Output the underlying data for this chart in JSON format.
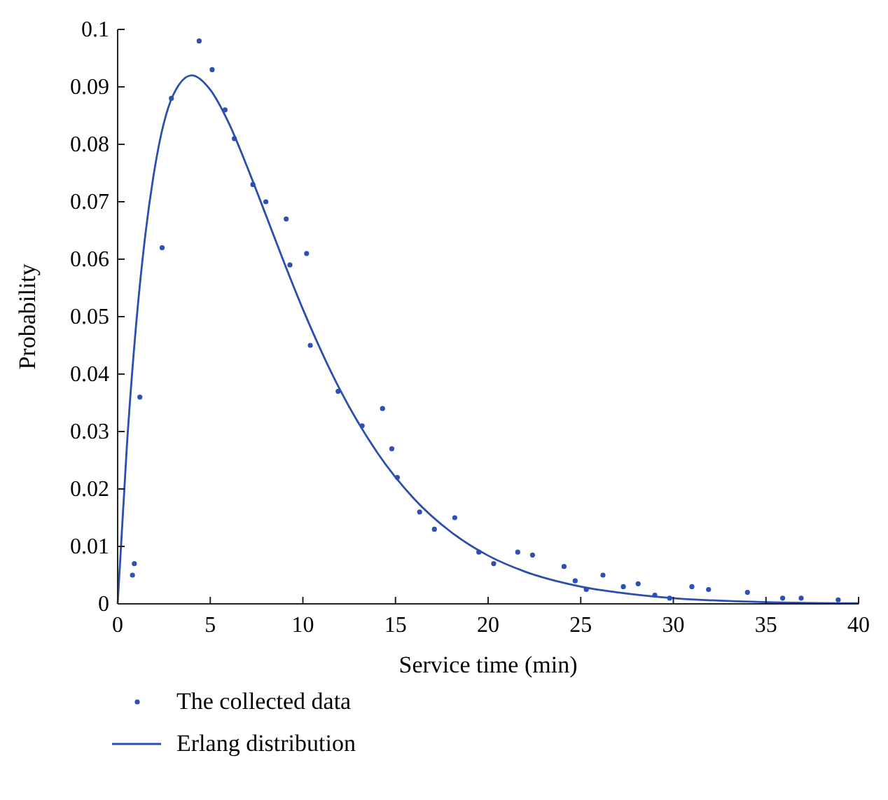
{
  "chart_data": {
    "type": "scatter",
    "xlabel": "Service time (min)",
    "ylabel": "Probability",
    "xlim": [
      0,
      40
    ],
    "ylim": [
      0,
      0.1
    ],
    "xticks": [
      0,
      5,
      10,
      15,
      20,
      25,
      30,
      35,
      40
    ],
    "yticks": [
      0,
      0.01,
      0.02,
      0.03,
      0.04,
      0.05,
      0.06,
      0.07,
      0.08,
      0.09,
      0.1
    ],
    "grid": false,
    "legend": "bottom",
    "series": [
      {
        "name": "The collected data",
        "marker": "circle",
        "color": "#3050b0",
        "x": [
          0.8,
          0.9,
          1.2,
          2.4,
          2.9,
          4.4,
          5.1,
          5.8,
          6.3,
          7.3,
          8.0,
          9.1,
          9.3,
          10.2,
          10.4,
          11.9,
          13.2,
          14.3,
          14.8,
          15.1,
          16.3,
          17.1,
          18.2,
          19.5,
          20.3,
          21.6,
          22.4,
          24.1,
          24.7,
          25.3,
          26.2,
          27.3,
          28.1,
          29.0,
          29.8,
          31.0,
          31.9,
          34.0,
          35.9,
          36.9,
          38.9
        ],
        "values": [
          0.005,
          0.007,
          0.036,
          0.062,
          0.088,
          0.098,
          0.093,
          0.086,
          0.081,
          0.073,
          0.07,
          0.067,
          0.059,
          0.061,
          0.045,
          0.037,
          0.031,
          0.034,
          0.027,
          0.022,
          0.016,
          0.013,
          0.015,
          0.009,
          0.007,
          0.009,
          0.0085,
          0.0065,
          0.004,
          0.0025,
          0.005,
          0.003,
          0.0035,
          0.0015,
          0.001,
          0.003,
          0.0025,
          0.002,
          0.001,
          0.001,
          0.0007
        ]
      },
      {
        "name": "Erlang distribution",
        "type": "line",
        "line_style": "solid",
        "color": "#2a4fb0",
        "x": [
          0,
          0.5,
          1,
          1.5,
          2,
          3,
          4,
          5,
          6,
          7,
          8,
          9,
          10,
          12,
          14,
          16,
          18,
          20,
          22,
          25,
          28,
          30,
          35,
          40
        ],
        "values": [
          0,
          0.0276,
          0.0487,
          0.0644,
          0.0758,
          0.0886,
          0.092,
          0.0895,
          0.0837,
          0.076,
          0.0677,
          0.0593,
          0.0513,
          0.0373,
          0.0264,
          0.0183,
          0.0125,
          0.0084,
          0.0056,
          0.003,
          0.0016,
          0.001,
          0.0003,
          0.0001
        ]
      }
    ]
  }
}
